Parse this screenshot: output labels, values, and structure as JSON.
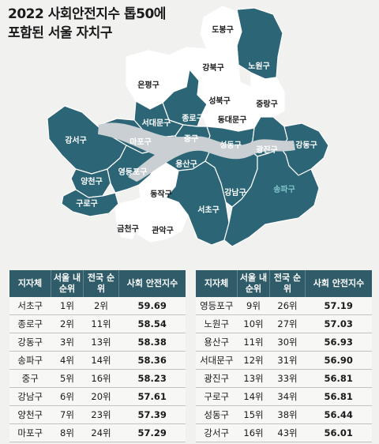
{
  "title": {
    "line1": "2022 사회안전지수 톱50에",
    "line2": "포함된 서울 자치구"
  },
  "colors": {
    "included": "#2b6576",
    "excluded": "#ffffff",
    "label_on_dark": "#ffffff",
    "label_on_light": "#1a1a1a",
    "highlight_label": "#7fc5c9",
    "table_header": "#305c6a"
  },
  "chart_data": {
    "type": "table",
    "columns": [
      "지자체",
      "서울 내 순위",
      "전국 순위",
      "사회 안전지수"
    ],
    "rows": [
      {
        "district": "서초구",
        "seoul_rank": "1위",
        "national_rank": "2위",
        "score": "59.69"
      },
      {
        "district": "종로구",
        "seoul_rank": "2위",
        "national_rank": "11위",
        "score": "58.54"
      },
      {
        "district": "강동구",
        "seoul_rank": "3위",
        "national_rank": "13위",
        "score": "58.38"
      },
      {
        "district": "송파구",
        "seoul_rank": "4위",
        "national_rank": "14위",
        "score": "58.36"
      },
      {
        "district": "중구",
        "seoul_rank": "5위",
        "national_rank": "16위",
        "score": "58.23"
      },
      {
        "district": "강남구",
        "seoul_rank": "6위",
        "national_rank": "20위",
        "score": "57.61"
      },
      {
        "district": "양천구",
        "seoul_rank": "7위",
        "national_rank": "23위",
        "score": "57.39"
      },
      {
        "district": "마포구",
        "seoul_rank": "8위",
        "national_rank": "24위",
        "score": "57.29"
      },
      {
        "district": "영등포구",
        "seoul_rank": "9위",
        "national_rank": "26위",
        "score": "57.19"
      },
      {
        "district": "노원구",
        "seoul_rank": "10위",
        "national_rank": "27위",
        "score": "57.03"
      },
      {
        "district": "용산구",
        "seoul_rank": "11위",
        "national_rank": "30위",
        "score": "56.93"
      },
      {
        "district": "서대문구",
        "seoul_rank": "12위",
        "national_rank": "31위",
        "score": "56.90"
      },
      {
        "district": "광진구",
        "seoul_rank": "13위",
        "national_rank": "33위",
        "score": "56.81"
      },
      {
        "district": "구로구",
        "seoul_rank": "14위",
        "national_rank": "34위",
        "score": "56.81"
      },
      {
        "district": "성동구",
        "seoul_rank": "15위",
        "national_rank": "38위",
        "score": "56.44"
      },
      {
        "district": "강서구",
        "seoul_rank": "16위",
        "national_rank": "43위",
        "score": "56.01"
      }
    ]
  },
  "map": {
    "districts": [
      {
        "name": "도봉구",
        "included": false
      },
      {
        "name": "노원구",
        "included": true
      },
      {
        "name": "강북구",
        "included": false
      },
      {
        "name": "은평구",
        "included": false
      },
      {
        "name": "성북구",
        "included": false
      },
      {
        "name": "중랑구",
        "included": false
      },
      {
        "name": "종로구",
        "included": true
      },
      {
        "name": "서대문구",
        "included": true
      },
      {
        "name": "동대문구",
        "included": false
      },
      {
        "name": "마포구",
        "included": true
      },
      {
        "name": "중구",
        "included": true
      },
      {
        "name": "성동구",
        "included": true
      },
      {
        "name": "광진구",
        "included": true
      },
      {
        "name": "강동구",
        "included": true
      },
      {
        "name": "용산구",
        "included": true
      },
      {
        "name": "강서구",
        "included": true
      },
      {
        "name": "양천구",
        "included": true
      },
      {
        "name": "영등포구",
        "included": true
      },
      {
        "name": "구로구",
        "included": true
      },
      {
        "name": "동작구",
        "included": false
      },
      {
        "name": "금천구",
        "included": false
      },
      {
        "name": "관악구",
        "included": false
      },
      {
        "name": "서초구",
        "included": true
      },
      {
        "name": "강남구",
        "included": true
      },
      {
        "name": "송파구",
        "included": true,
        "highlight": true
      }
    ]
  }
}
